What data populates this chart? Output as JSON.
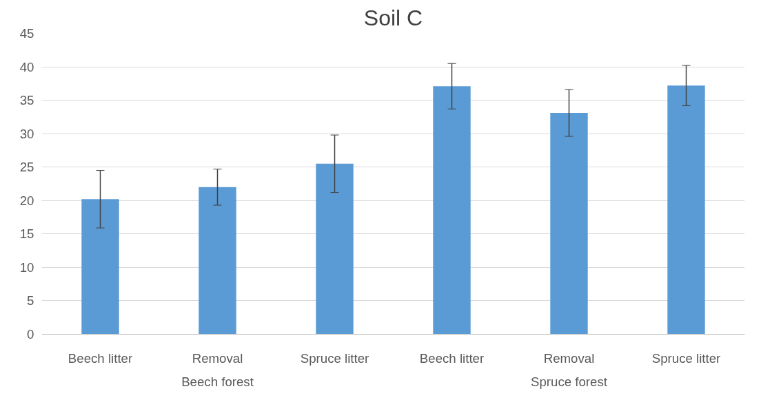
{
  "chart_data": {
    "type": "bar",
    "title": "Soil C",
    "categories": [
      "Beech litter",
      "Removal",
      "Spruce litter",
      "Beech litter",
      "Removal",
      "Spruce litter"
    ],
    "values": [
      20.2,
      22.0,
      25.5,
      37.1,
      33.1,
      37.2
    ],
    "errors": [
      4.3,
      2.7,
      4.3,
      3.4,
      3.5,
      3.0
    ],
    "color": "#5b9bd5",
    "ylim": [
      0,
      45
    ],
    "yticks": [
      0,
      5,
      10,
      15,
      20,
      25,
      30,
      35,
      40,
      45
    ],
    "grid": "y",
    "annotations": [
      "Beech forest",
      "Spruce forest"
    ]
  }
}
